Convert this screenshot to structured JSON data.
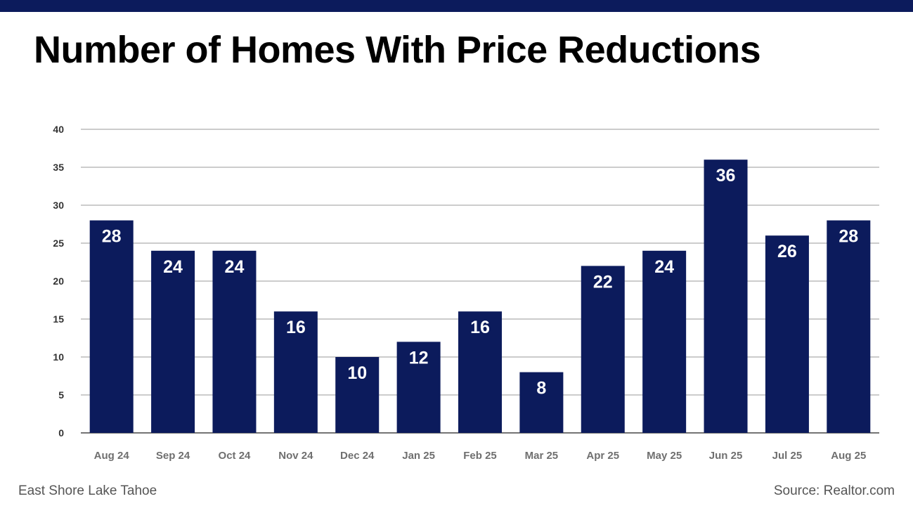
{
  "header": {
    "title": "Number of Homes With Price Reductions"
  },
  "footer": {
    "location": "East Shore Lake Tahoe",
    "source": "Source: Realtor.com"
  },
  "colors": {
    "bar": "#0c1b5c",
    "bar_label": "#ffffff",
    "grid": "#9a9a9a",
    "tick_label": "#6f6f6f",
    "y_tick_label": "#333333"
  },
  "chart_data": {
    "type": "bar",
    "title": "Number of Homes With Price Reductions",
    "xlabel": "",
    "ylabel": "",
    "categories": [
      "Aug 24",
      "Sep 24",
      "Oct 24",
      "Nov 24",
      "Dec 24",
      "Jan 25",
      "Feb 25",
      "Mar 25",
      "Apr 25",
      "May 25",
      "Jun 25",
      "Jul 25",
      "Aug 25"
    ],
    "values": [
      28,
      24,
      24,
      16,
      10,
      12,
      16,
      8,
      22,
      24,
      36,
      26,
      28
    ],
    "ylim": [
      0,
      40
    ],
    "yticks": [
      0,
      5,
      10,
      15,
      20,
      25,
      30,
      35,
      40
    ],
    "grid": true,
    "data_labels": true
  }
}
